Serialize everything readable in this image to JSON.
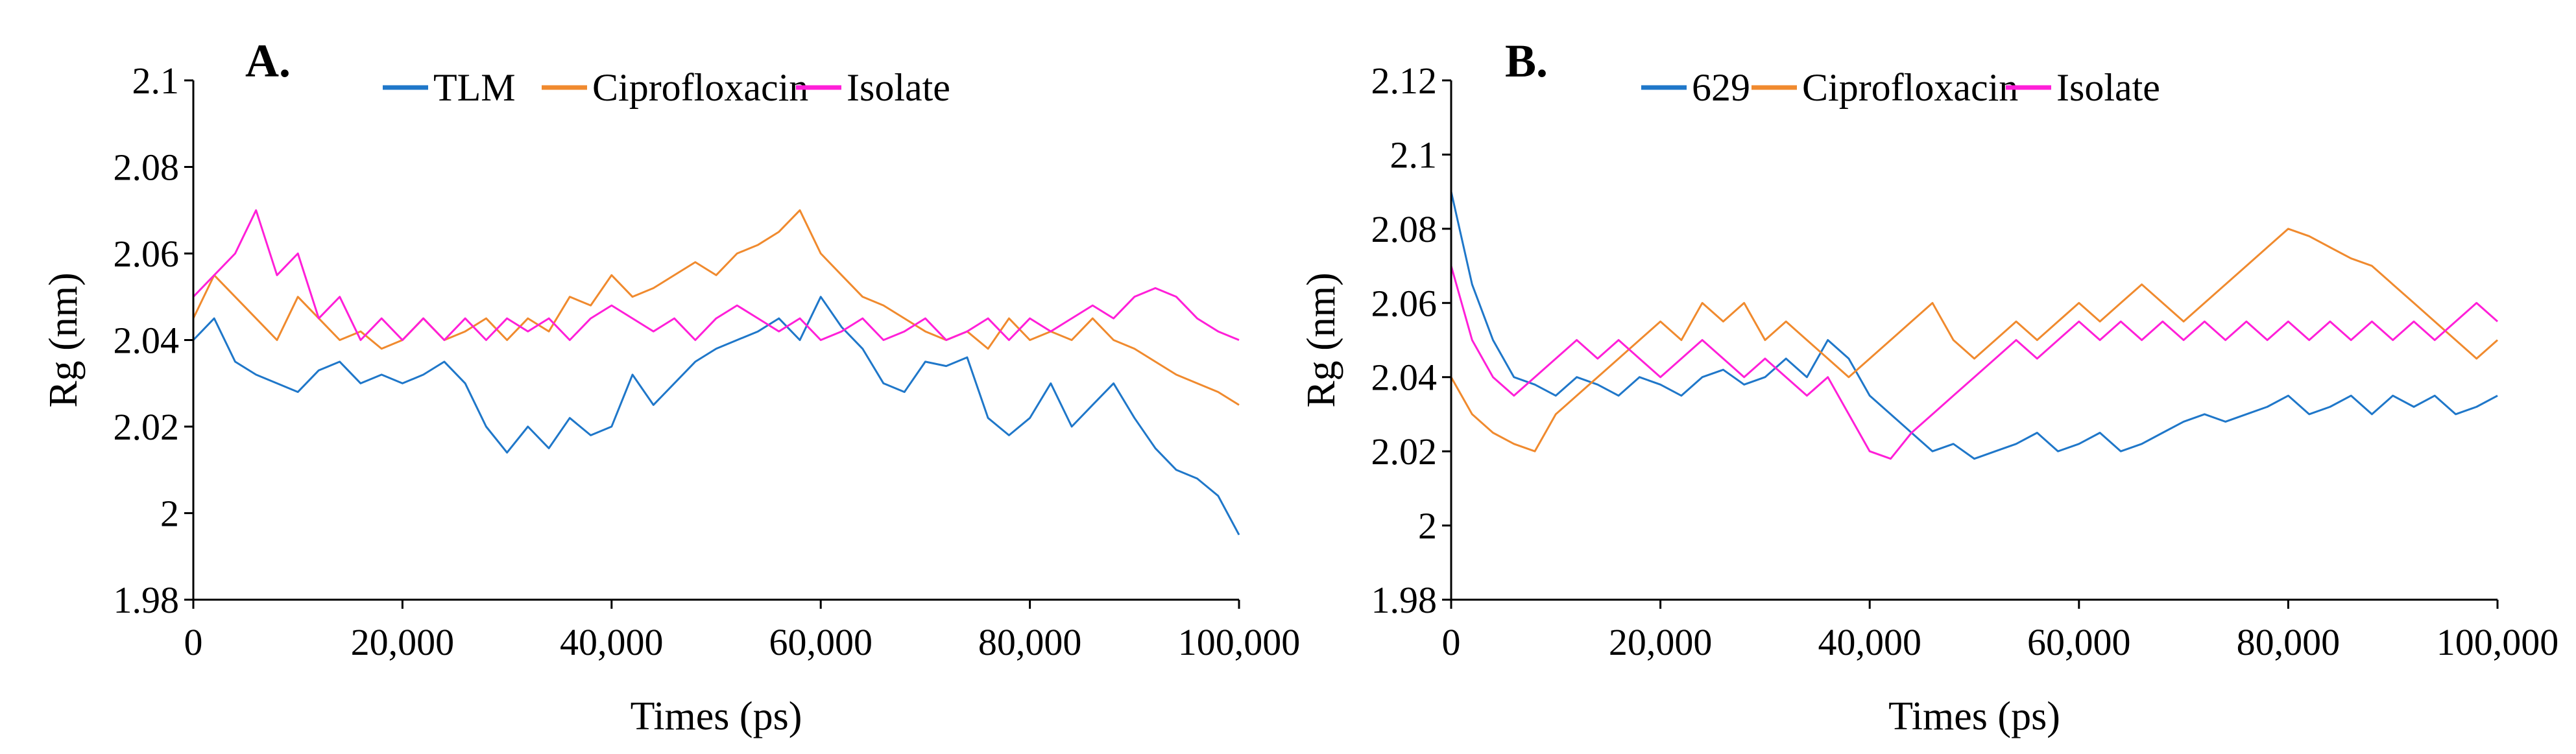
{
  "chart_data": [
    {
      "type": "line",
      "panel_label": "A.",
      "xlabel": "Times (ps)",
      "ylabel": "Rg (nm)",
      "xlim": [
        0,
        100000
      ],
      "ylim": [
        1.98,
        2.1
      ],
      "xticks": [
        0,
        20000,
        40000,
        60000,
        80000,
        100000
      ],
      "xtick_labels": [
        "0",
        "20,000",
        "40,000",
        "60,000",
        "80,000",
        "100,000"
      ],
      "yticks": [
        1.98,
        2.0,
        2.02,
        2.04,
        2.06,
        2.08,
        2.1
      ],
      "ytick_labels": [
        "1.98",
        "2",
        "2.02",
        "2.04",
        "2.06",
        "2.08",
        "2.1"
      ],
      "grid": false,
      "legend_position": "top",
      "series": [
        {
          "name": "TLM",
          "color": "#1f77c9",
          "x": [
            0,
            2000,
            4000,
            6000,
            8000,
            10000,
            12000,
            14000,
            16000,
            18000,
            20000,
            22000,
            24000,
            26000,
            28000,
            30000,
            32000,
            34000,
            36000,
            38000,
            40000,
            42000,
            44000,
            46000,
            48000,
            50000,
            52000,
            54000,
            56000,
            58000,
            60000,
            62000,
            64000,
            66000,
            68000,
            70000,
            72000,
            74000,
            76000,
            78000,
            80000,
            82000,
            84000,
            86000,
            88000,
            90000,
            92000,
            94000,
            96000,
            98000,
            100000
          ],
          "values": [
            2.04,
            2.045,
            2.035,
            2.032,
            2.03,
            2.028,
            2.033,
            2.035,
            2.03,
            2.032,
            2.03,
            2.032,
            2.035,
            2.03,
            2.02,
            2.014,
            2.02,
            2.015,
            2.022,
            2.018,
            2.02,
            2.032,
            2.025,
            2.03,
            2.035,
            2.038,
            2.04,
            2.042,
            2.045,
            2.04,
            2.05,
            2.043,
            2.038,
            2.03,
            2.028,
            2.035,
            2.034,
            2.036,
            2.022,
            2.018,
            2.022,
            2.03,
            2.02,
            2.025,
            2.03,
            2.022,
            2.015,
            2.01,
            2.008,
            2.004,
            1.995
          ]
        },
        {
          "name": "Ciprofloxacin",
          "color": "#f08a2e",
          "x": [
            0,
            2000,
            4000,
            6000,
            8000,
            10000,
            12000,
            14000,
            16000,
            18000,
            20000,
            22000,
            24000,
            26000,
            28000,
            30000,
            32000,
            34000,
            36000,
            38000,
            40000,
            42000,
            44000,
            46000,
            48000,
            50000,
            52000,
            54000,
            56000,
            58000,
            60000,
            62000,
            64000,
            66000,
            68000,
            70000,
            72000,
            74000,
            76000,
            78000,
            80000,
            82000,
            84000,
            86000,
            88000,
            90000,
            92000,
            94000,
            96000,
            98000,
            100000
          ],
          "values": [
            2.045,
            2.055,
            2.05,
            2.045,
            2.04,
            2.05,
            2.045,
            2.04,
            2.042,
            2.038,
            2.04,
            2.045,
            2.04,
            2.042,
            2.045,
            2.04,
            2.045,
            2.042,
            2.05,
            2.048,
            2.055,
            2.05,
            2.052,
            2.055,
            2.058,
            2.055,
            2.06,
            2.062,
            2.065,
            2.07,
            2.06,
            2.055,
            2.05,
            2.048,
            2.045,
            2.042,
            2.04,
            2.042,
            2.038,
            2.045,
            2.04,
            2.042,
            2.04,
            2.045,
            2.04,
            2.038,
            2.035,
            2.032,
            2.03,
            2.028,
            2.025
          ]
        },
        {
          "name": "Isolate",
          "color": "#ff1fd8",
          "x": [
            0,
            2000,
            4000,
            6000,
            8000,
            10000,
            12000,
            14000,
            16000,
            18000,
            20000,
            22000,
            24000,
            26000,
            28000,
            30000,
            32000,
            34000,
            36000,
            38000,
            40000,
            42000,
            44000,
            46000,
            48000,
            50000,
            52000,
            54000,
            56000,
            58000,
            60000,
            62000,
            64000,
            66000,
            68000,
            70000,
            72000,
            74000,
            76000,
            78000,
            80000,
            82000,
            84000,
            86000,
            88000,
            90000,
            92000,
            94000,
            96000,
            98000,
            100000
          ],
          "values": [
            2.05,
            2.055,
            2.06,
            2.07,
            2.055,
            2.06,
            2.045,
            2.05,
            2.04,
            2.045,
            2.04,
            2.045,
            2.04,
            2.045,
            2.04,
            2.045,
            2.042,
            2.045,
            2.04,
            2.045,
            2.048,
            2.045,
            2.042,
            2.045,
            2.04,
            2.045,
            2.048,
            2.045,
            2.042,
            2.045,
            2.04,
            2.042,
            2.045,
            2.04,
            2.042,
            2.045,
            2.04,
            2.042,
            2.045,
            2.04,
            2.045,
            2.042,
            2.045,
            2.048,
            2.045,
            2.05,
            2.052,
            2.05,
            2.045,
            2.042,
            2.04
          ]
        }
      ]
    },
    {
      "type": "line",
      "panel_label": "B.",
      "xlabel": "Times (ps)",
      "ylabel": "Rg (nm)",
      "xlim": [
        0,
        100000
      ],
      "ylim": [
        1.98,
        2.12
      ],
      "xticks": [
        0,
        20000,
        40000,
        60000,
        80000,
        100000
      ],
      "xtick_labels": [
        "0",
        "20,000",
        "40,000",
        "60,000",
        "80,000",
        "100,000"
      ],
      "yticks": [
        1.98,
        2.0,
        2.02,
        2.04,
        2.06,
        2.08,
        2.1,
        2.12
      ],
      "ytick_labels": [
        "1.98",
        "2",
        "2.02",
        "2.04",
        "2.06",
        "2.08",
        "2.1",
        "2.12"
      ],
      "grid": false,
      "legend_position": "top",
      "series": [
        {
          "name": "629",
          "color": "#1f77c9",
          "x": [
            0,
            2000,
            4000,
            6000,
            8000,
            10000,
            12000,
            14000,
            16000,
            18000,
            20000,
            22000,
            24000,
            26000,
            28000,
            30000,
            32000,
            34000,
            36000,
            38000,
            40000,
            42000,
            44000,
            46000,
            48000,
            50000,
            52000,
            54000,
            56000,
            58000,
            60000,
            62000,
            64000,
            66000,
            68000,
            70000,
            72000,
            74000,
            76000,
            78000,
            80000,
            82000,
            84000,
            86000,
            88000,
            90000,
            92000,
            94000,
            96000,
            98000,
            100000
          ],
          "values": [
            2.09,
            2.065,
            2.05,
            2.04,
            2.038,
            2.035,
            2.04,
            2.038,
            2.035,
            2.04,
            2.038,
            2.035,
            2.04,
            2.042,
            2.038,
            2.04,
            2.045,
            2.04,
            2.05,
            2.045,
            2.035,
            2.03,
            2.025,
            2.02,
            2.022,
            2.018,
            2.02,
            2.022,
            2.025,
            2.02,
            2.022,
            2.025,
            2.02,
            2.022,
            2.025,
            2.028,
            2.03,
            2.028,
            2.03,
            2.032,
            2.035,
            2.03,
            2.032,
            2.035,
            2.03,
            2.035,
            2.032,
            2.035,
            2.03,
            2.032,
            2.035
          ]
        },
        {
          "name": "Ciprofloxacin",
          "color": "#f08a2e",
          "x": [
            0,
            2000,
            4000,
            6000,
            8000,
            10000,
            12000,
            14000,
            16000,
            18000,
            20000,
            22000,
            24000,
            26000,
            28000,
            30000,
            32000,
            34000,
            36000,
            38000,
            40000,
            42000,
            44000,
            46000,
            48000,
            50000,
            52000,
            54000,
            56000,
            58000,
            60000,
            62000,
            64000,
            66000,
            68000,
            70000,
            72000,
            74000,
            76000,
            78000,
            80000,
            82000,
            84000,
            86000,
            88000,
            90000,
            92000,
            94000,
            96000,
            98000,
            100000
          ],
          "values": [
            2.04,
            2.03,
            2.025,
            2.022,
            2.02,
            2.03,
            2.035,
            2.04,
            2.045,
            2.05,
            2.055,
            2.05,
            2.06,
            2.055,
            2.06,
            2.05,
            2.055,
            2.05,
            2.045,
            2.04,
            2.045,
            2.05,
            2.055,
            2.06,
            2.05,
            2.045,
            2.05,
            2.055,
            2.05,
            2.055,
            2.06,
            2.055,
            2.06,
            2.065,
            2.06,
            2.055,
            2.06,
            2.065,
            2.07,
            2.075,
            2.08,
            2.078,
            2.075,
            2.072,
            2.07,
            2.065,
            2.06,
            2.055,
            2.05,
            2.045,
            2.05
          ]
        },
        {
          "name": "Isolate",
          "color": "#ff1fd8",
          "x": [
            0,
            2000,
            4000,
            6000,
            8000,
            10000,
            12000,
            14000,
            16000,
            18000,
            20000,
            22000,
            24000,
            26000,
            28000,
            30000,
            32000,
            34000,
            36000,
            38000,
            40000,
            42000,
            44000,
            46000,
            48000,
            50000,
            52000,
            54000,
            56000,
            58000,
            60000,
            62000,
            64000,
            66000,
            68000,
            70000,
            72000,
            74000,
            76000,
            78000,
            80000,
            82000,
            84000,
            86000,
            88000,
            90000,
            92000,
            94000,
            96000,
            98000,
            100000
          ],
          "values": [
            2.07,
            2.05,
            2.04,
            2.035,
            2.04,
            2.045,
            2.05,
            2.045,
            2.05,
            2.045,
            2.04,
            2.045,
            2.05,
            2.045,
            2.04,
            2.045,
            2.04,
            2.035,
            2.04,
            2.03,
            2.02,
            2.018,
            2.025,
            2.03,
            2.035,
            2.04,
            2.045,
            2.05,
            2.045,
            2.05,
            2.055,
            2.05,
            2.055,
            2.05,
            2.055,
            2.05,
            2.055,
            2.05,
            2.055,
            2.05,
            2.055,
            2.05,
            2.055,
            2.05,
            2.055,
            2.05,
            2.055,
            2.05,
            2.055,
            2.06,
            2.055
          ]
        }
      ]
    }
  ]
}
